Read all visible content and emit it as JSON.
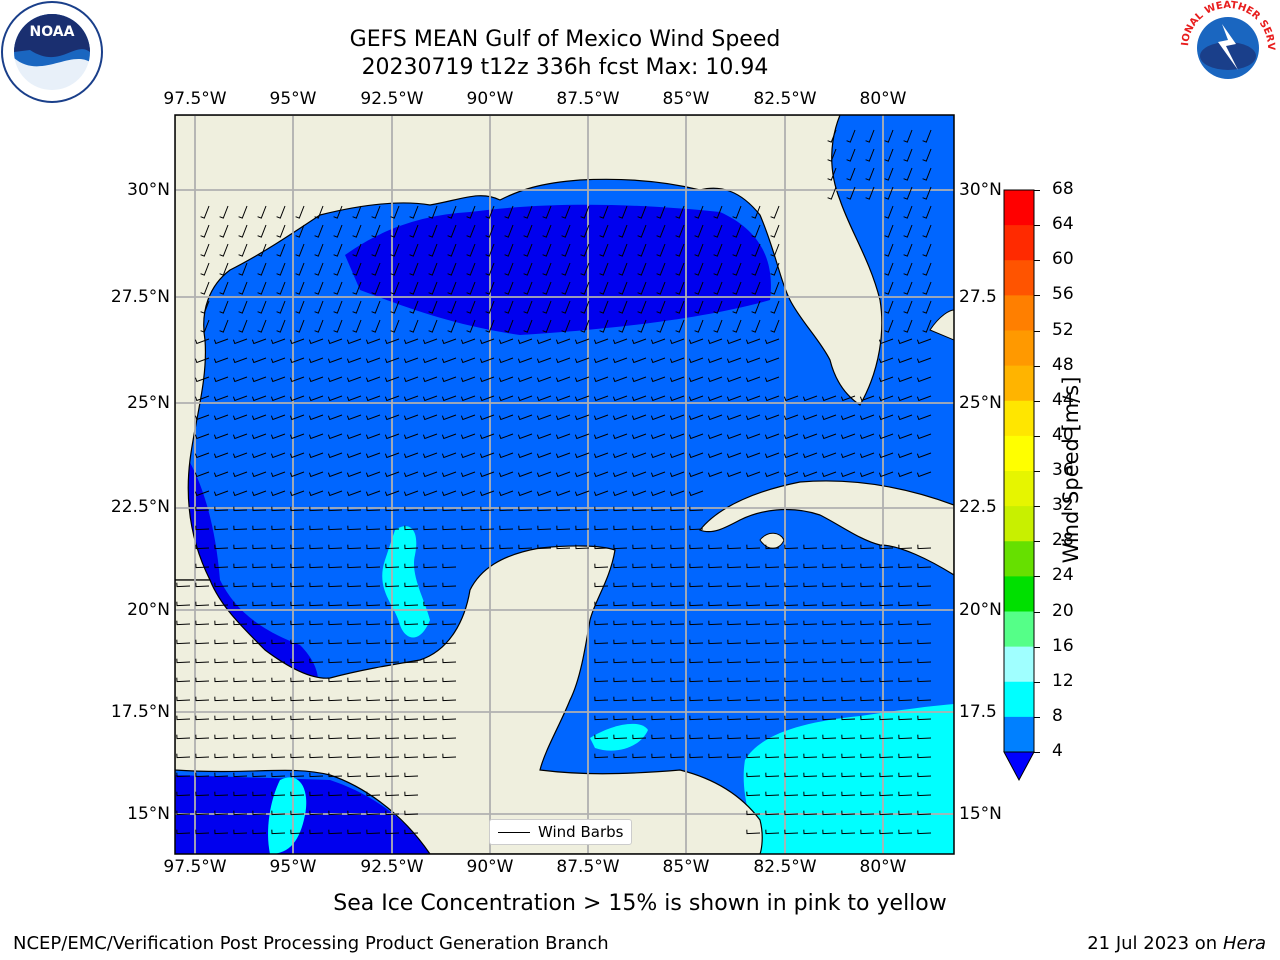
{
  "title": {
    "line1": "GEFS MEAN Gulf of Mexico Wind Speed",
    "line2": "20230719 t12z 336h fcst   Max: 10.94"
  },
  "axes": {
    "lon_labels": [
      "97.5°W",
      "95°W",
      "92.5°W",
      "90°W",
      "87.5°W",
      "85°W",
      "82.5°W",
      "80°W"
    ],
    "lat_labels": [
      "30°N",
      "27.5°N",
      "25°N",
      "22.5°N",
      "20°N",
      "17.5°N",
      "15°N"
    ],
    "lat_labels_right": [
      "30°N",
      "27.5",
      "25°N",
      "22.5",
      "20°N",
      "17.5",
      "15°N"
    ]
  },
  "colorbar": {
    "label": "Wind Speed [m/s]",
    "ticks": [
      "68",
      "64",
      "60",
      "56",
      "52",
      "48",
      "44",
      "40",
      "36",
      "32",
      "28",
      "24",
      "20",
      "16",
      "12",
      "8",
      "4"
    ],
    "colors": [
      "#ff0000",
      "#ff2a00",
      "#ff5400",
      "#ff7f00",
      "#ff9900",
      "#ffb400",
      "#ffe600",
      "#ffff00",
      "#e0f000",
      "#c8f000",
      "#9aee00",
      "#3cd800",
      "#00e800",
      "#00f000",
      "#4dff80",
      "#a0ffff",
      "#50ffff",
      "#00ffff",
      "#0080ff",
      "#0000ff"
    ]
  },
  "legend": {
    "label": "Wind Barbs"
  },
  "caption": "Sea Ice Concentration > 15% is shown in pink to yellow",
  "footer": {
    "left": "NCEP/EMC/Verification Post Processing Product Generation Branch",
    "right_date": "21 Jul 2023 on ",
    "right_machine": "Hera"
  },
  "logos": {
    "left": "NOAA",
    "right": "NATIONAL WEATHER SERVICE"
  }
}
